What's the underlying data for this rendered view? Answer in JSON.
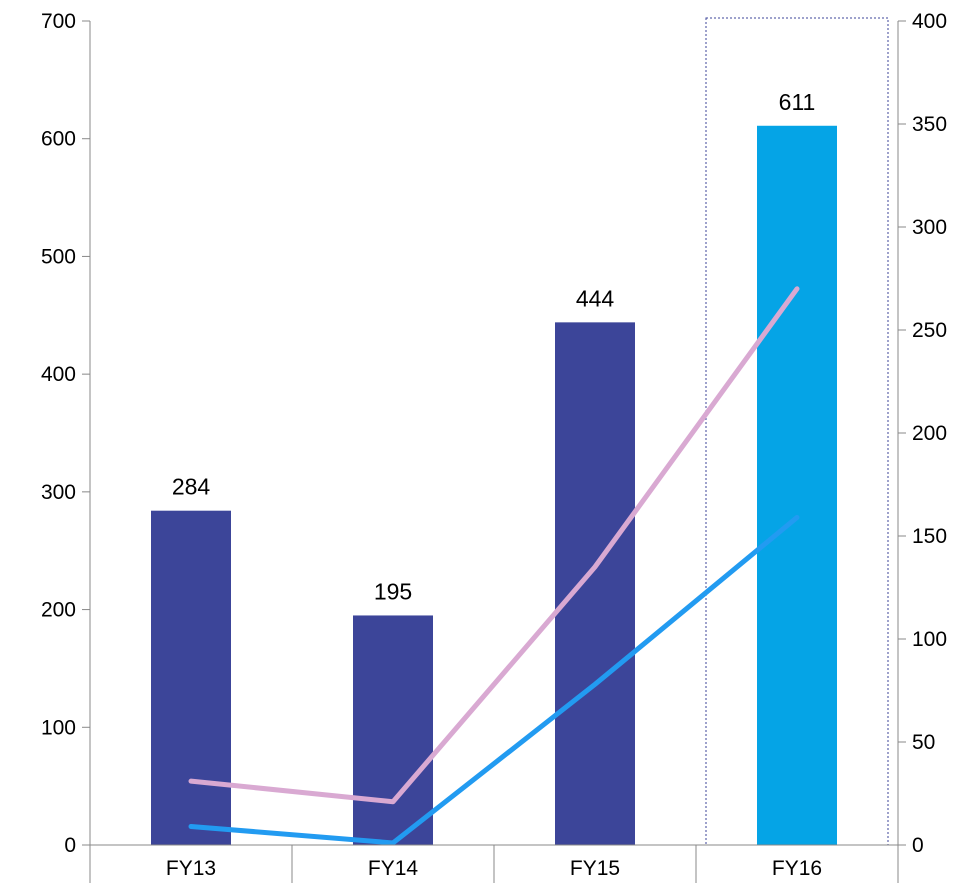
{
  "chart_data": {
    "type": "bar",
    "title": "",
    "xlabel": "",
    "ylabel": "",
    "categories": [
      "FY13",
      "FY14",
      "FY15",
      "FY16"
    ],
    "ylim": [
      0,
      700
    ],
    "y_ticks": [
      0,
      100,
      200,
      300,
      400,
      500,
      600,
      700
    ],
    "y2lim": [
      0,
      400
    ],
    "y2_ticks": [
      0,
      50,
      100,
      150,
      200,
      250,
      300,
      350,
      400
    ],
    "grid": false,
    "highlight_category": "FY16",
    "series": [
      {
        "type": "bar",
        "axis": "left",
        "values": [
          284,
          195,
          444,
          611
        ],
        "data_labels": [
          "284",
          "195",
          "444",
          "611"
        ],
        "colors": [
          "#3C4599",
          "#3C4599",
          "#3C4599",
          "#05A4E6"
        ]
      },
      {
        "type": "line",
        "axis": "right",
        "values": [
          31,
          21,
          135,
          270
        ],
        "color": "#D9A9D2"
      },
      {
        "type": "line",
        "axis": "right",
        "values": [
          9,
          1,
          78,
          159
        ],
        "color": "#229BF1"
      }
    ]
  }
}
